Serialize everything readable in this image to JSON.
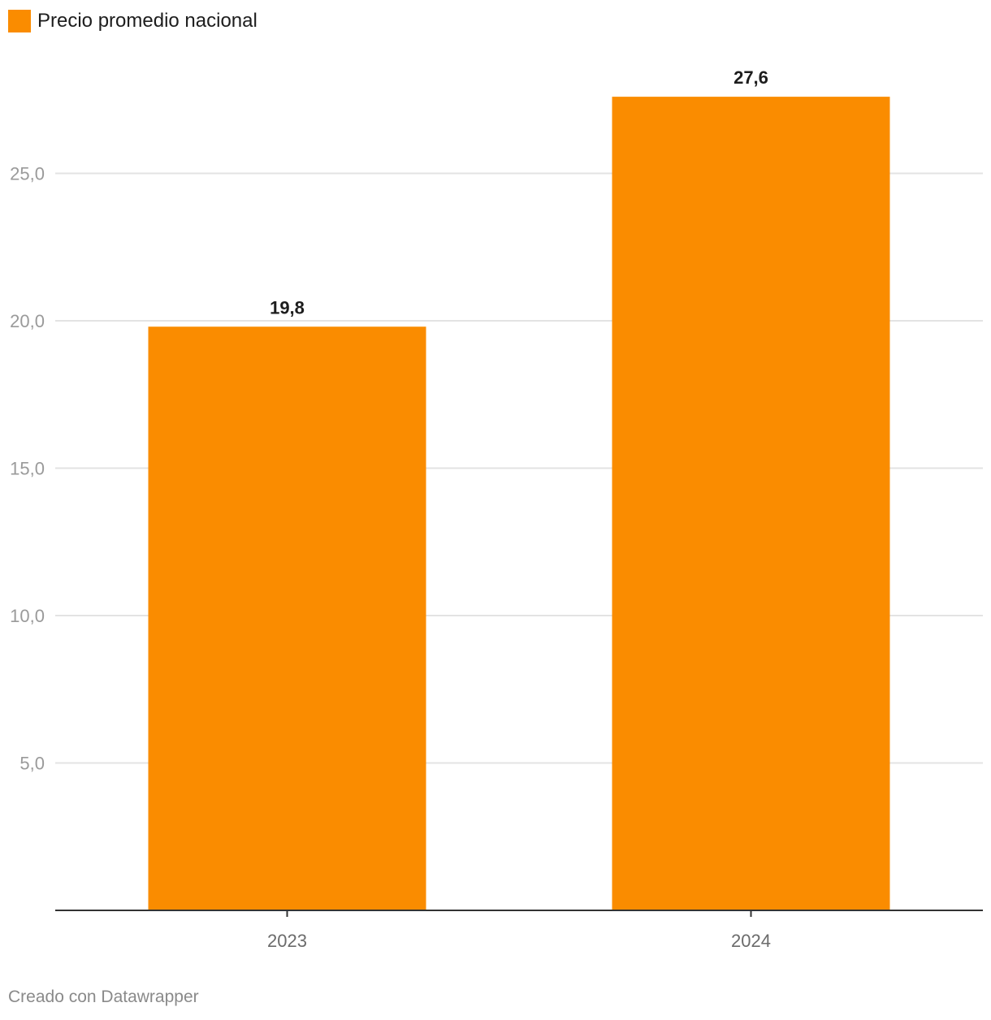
{
  "chart_data": {
    "type": "bar",
    "categories": [
      "2023",
      "2024"
    ],
    "series": [
      {
        "name": "Precio promedio nacional",
        "values": [
          19.8,
          27.6
        ],
        "value_labels": [
          "19,8",
          "27,6"
        ]
      }
    ],
    "yticks": [
      5,
      10,
      15,
      20,
      25
    ],
    "ytick_labels": [
      "5,0",
      "10,0",
      "15,0",
      "20,0",
      "25,0"
    ],
    "ylim": [
      0,
      27.6
    ],
    "grid": true,
    "legend_position": "top-left",
    "bar_color": "#fa8c00"
  },
  "legend": {
    "label": "Precio promedio nacional",
    "color": "#fa8c00"
  },
  "footer": {
    "credit": "Creado con Datawrapper"
  }
}
